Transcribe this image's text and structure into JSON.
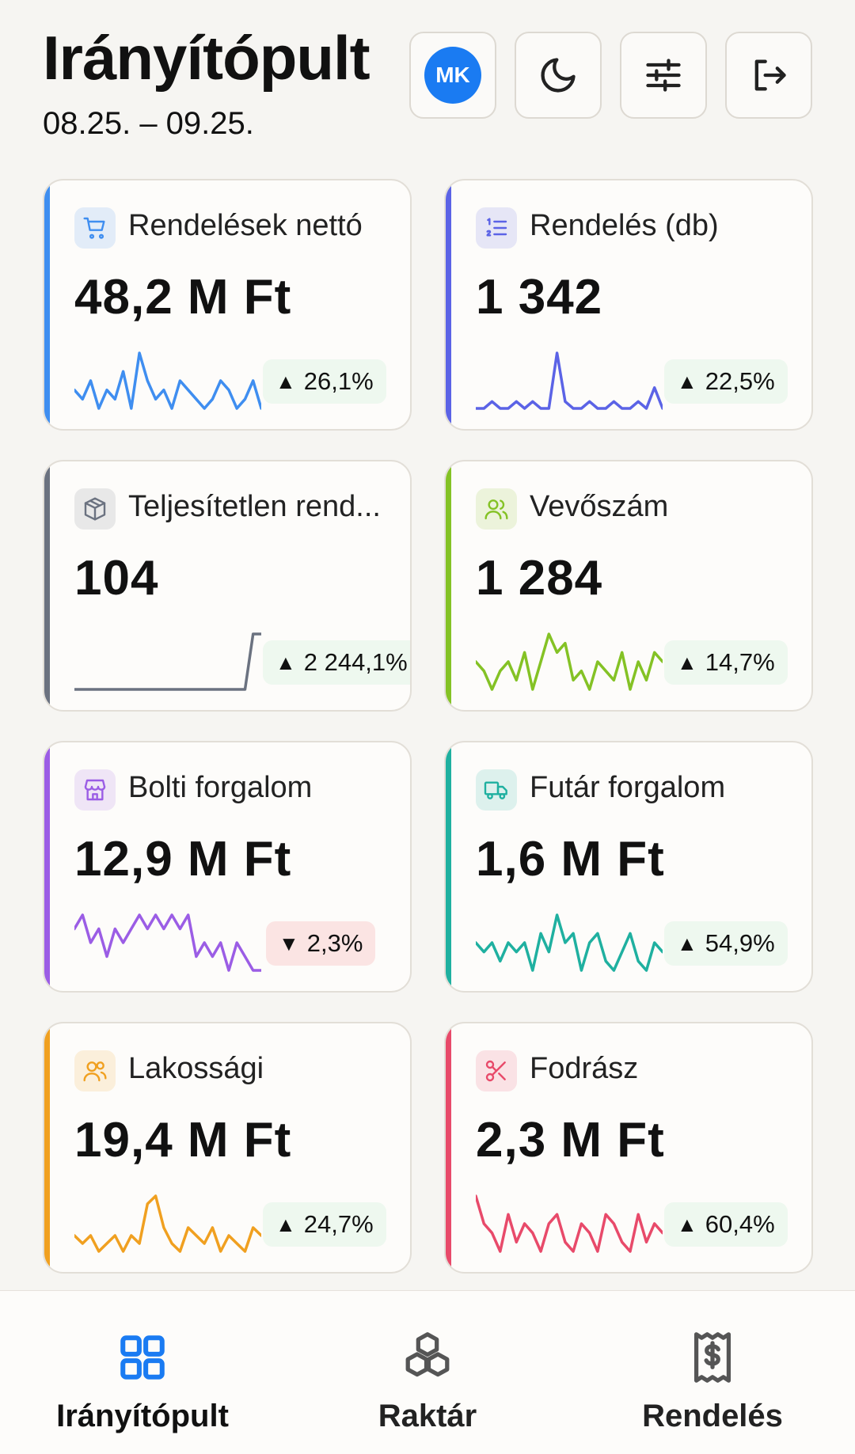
{
  "header": {
    "title": "Irányítópult",
    "date_range": "08.25. – 09.25.",
    "avatar_initials": "MK"
  },
  "cards": [
    {
      "label": "Rendelések nettó",
      "value": "48,2 M Ft",
      "delta": "26,1%",
      "trend": "up",
      "color": "#3f8ef0",
      "icon": "cart-icon",
      "spark": [
        5,
        4,
        6,
        3,
        5,
        4,
        7,
        3,
        9,
        6,
        4,
        5,
        3,
        6,
        5,
        4,
        3,
        4,
        6,
        5,
        3,
        4,
        6,
        3
      ]
    },
    {
      "label": "Rendelés (db)",
      "value": "1 342",
      "delta": "22,5%",
      "trend": "up",
      "color": "#5b63e6",
      "icon": "numbered-list-icon",
      "spark": [
        2,
        2,
        3,
        2,
        2,
        3,
        2,
        3,
        2,
        2,
        10,
        3,
        2,
        2,
        3,
        2,
        2,
        3,
        2,
        2,
        3,
        2,
        5,
        2
      ]
    },
    {
      "label": "Teljesítetlen rend...",
      "value": "104",
      "delta": "2 244,1%",
      "trend": "up",
      "color": "#6b7280",
      "icon": "package-icon",
      "spark": [
        1,
        1,
        1,
        1,
        1,
        1,
        1,
        1,
        1,
        1,
        1,
        1,
        1,
        1,
        1,
        1,
        1,
        1,
        1,
        1,
        1,
        1,
        7,
        7
      ]
    },
    {
      "label": "Vevőszám",
      "value": "1 284",
      "delta": "14,7%",
      "trend": "up",
      "color": "#84c225",
      "icon": "users-icon",
      "spark": [
        5,
        4,
        2,
        4,
        5,
        3,
        6,
        2,
        5,
        8,
        6,
        7,
        3,
        4,
        2,
        5,
        4,
        3,
        6,
        2,
        5,
        3,
        6,
        5
      ]
    },
    {
      "label": "Bolti forgalom",
      "value": "12,9 M Ft",
      "delta": "2,3%",
      "trend": "down",
      "color": "#9b5de5",
      "icon": "store-icon",
      "spark": [
        6,
        7,
        5,
        6,
        4,
        6,
        5,
        6,
        7,
        6,
        7,
        6,
        7,
        6,
        7,
        4,
        5,
        4,
        5,
        3,
        5,
        4,
        3,
        3
      ]
    },
    {
      "label": "Futár forgalom",
      "value": "1,6 M Ft",
      "delta": "54,9%",
      "trend": "up",
      "color": "#1fb0a0",
      "icon": "truck-icon",
      "spark": [
        5,
        4,
        5,
        3,
        5,
        4,
        5,
        2,
        6,
        4,
        8,
        5,
        6,
        2,
        5,
        6,
        3,
        2,
        4,
        6,
        3,
        2,
        5,
        4
      ]
    },
    {
      "label": "Lakossági",
      "value": "19,4 M Ft",
      "delta": "24,7%",
      "trend": "up",
      "color": "#f0a020",
      "icon": "people-icon",
      "spark": [
        4,
        3,
        4,
        2,
        3,
        4,
        2,
        4,
        3,
        8,
        9,
        5,
        3,
        2,
        5,
        4,
        3,
        5,
        2,
        4,
        3,
        2,
        5,
        4
      ]
    },
    {
      "label": "Fodrász",
      "value": "2,3 M Ft",
      "delta": "60,4%",
      "trend": "up",
      "color": "#e84a6a",
      "icon": "scissors-icon",
      "spark": [
        8,
        5,
        4,
        2,
        6,
        3,
        5,
        4,
        2,
        5,
        6,
        3,
        2,
        5,
        4,
        2,
        6,
        5,
        3,
        2,
        6,
        3,
        5,
        4
      ]
    }
  ],
  "nav": [
    {
      "label": "Irányítópult",
      "icon": "dashboard-grid-icon",
      "active": true
    },
    {
      "label": "Raktár",
      "icon": "boxes-icon",
      "active": false
    },
    {
      "label": "Rendelés",
      "icon": "receipt-dollar-icon",
      "active": false
    }
  ],
  "colors": {
    "accent": "#1a7bf2",
    "up": "#eef8ef",
    "down": "#fbe4e3"
  }
}
